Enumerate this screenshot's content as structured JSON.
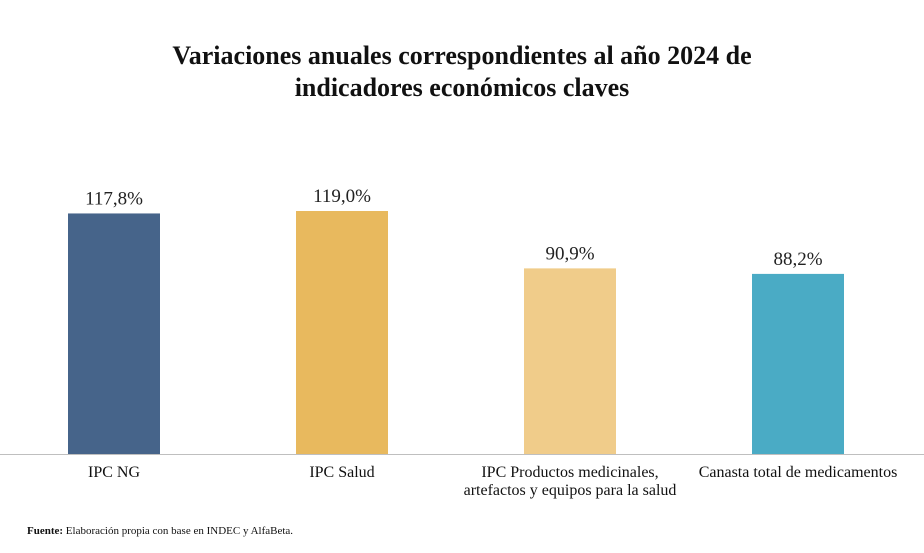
{
  "chart_data": {
    "type": "bar",
    "title_lines": [
      "Variaciones anuales correspondientes al año 2024 de",
      "indicadores económicos claves"
    ],
    "categories": [
      [
        "IPC NG"
      ],
      [
        "IPC Salud"
      ],
      [
        "IPC Productos medicinales,",
        "artefactos y equipos para la salud"
      ],
      [
        "Canasta total de medicamentos"
      ]
    ],
    "values": [
      117.8,
      119.0,
      90.9,
      88.2
    ],
    "value_labels": [
      "117,8%",
      "119,0%",
      "90,9%",
      "88,2%"
    ],
    "colors": [
      "#46648a",
      "#e8b95e",
      "#f0cc8a",
      "#4aabc5"
    ],
    "ylim": [
      0,
      130
    ],
    "xlabel": "",
    "ylabel": "",
    "grid": false,
    "legend": "none"
  },
  "source": {
    "label": "Fuente:",
    "text": "Elaboración propia con base en INDEC y AlfaBeta."
  }
}
